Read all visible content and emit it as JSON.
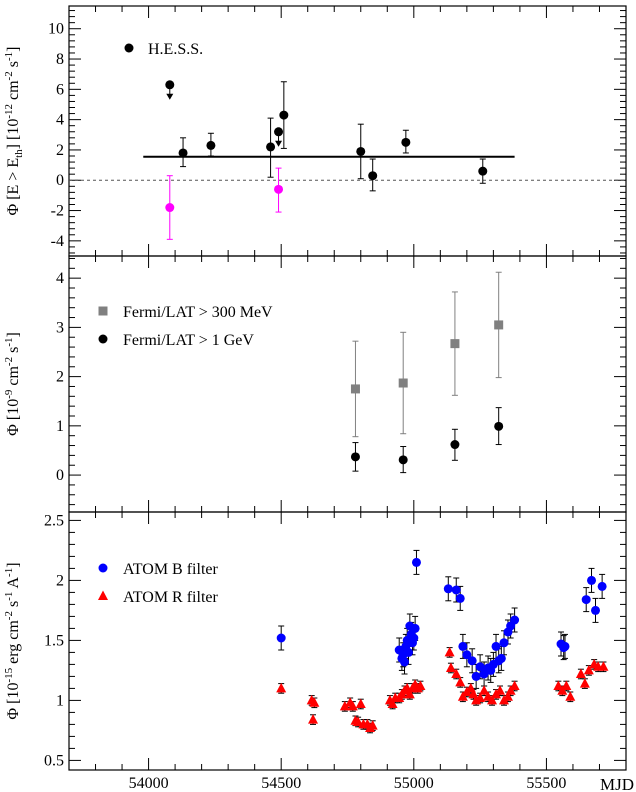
{
  "chart_data": [
    {
      "type": "scatter",
      "ylabel": "Φ [E > E_th] [10^-12 cm^-2 s^-1]",
      "ylim": [
        -5,
        11.5
      ],
      "yticks": [
        -4,
        -2,
        0,
        2,
        4,
        6,
        8,
        10
      ],
      "xlim": [
        53700,
        55800
      ],
      "legend": [
        {
          "label": "H.E.S.S.",
          "color": "#000000"
        }
      ],
      "series": [
        {
          "name": "H.E.S.S.",
          "color": "#000000",
          "points": [
            {
              "x": 54130,
              "y": 1.8,
              "ylo": 0.9,
              "yhi": 2.8
            },
            {
              "x": 54235,
              "y": 2.3,
              "ylo": 1.6,
              "yhi": 3.1
            },
            {
              "x": 54460,
              "y": 2.2,
              "ylo": 0.2,
              "yhi": 4.1
            },
            {
              "x": 54510,
              "y": 4.3,
              "ylo": 2.1,
              "yhi": 6.5
            },
            {
              "x": 54800,
              "y": 1.9,
              "ylo": 0.1,
              "yhi": 3.7
            },
            {
              "x": 54845,
              "y": 0.3,
              "ylo": -0.7,
              "yhi": 1.4
            },
            {
              "x": 54970,
              "y": 2.5,
              "ylo": 1.8,
              "yhi": 3.3
            },
            {
              "x": 55260,
              "y": 0.6,
              "ylo": -0.2,
              "yhi": 1.4
            }
          ],
          "upper_limits": [
            {
              "x": 54080,
              "y": 6.3
            },
            {
              "x": 54490,
              "y": 3.2
            }
          ]
        },
        {
          "name": "",
          "color": "#ff00ff",
          "points": [
            {
              "x": 54080,
              "y": -1.8,
              "ylo": -3.9,
              "yhi": 0.3
            },
            {
              "x": 54490,
              "y": -0.6,
              "ylo": -2.1,
              "yhi": 0.8
            }
          ]
        }
      ],
      "constant_fit": {
        "y": 1.55,
        "x_from": 53980,
        "x_to": 55380
      },
      "reference_line": {
        "y": 0,
        "style": "dashed"
      }
    },
    {
      "type": "scatter",
      "ylabel": "Φ [10^-9 cm^-2 s^-1]",
      "ylim": [
        -0.75,
        4.45
      ],
      "yticks": [
        0,
        1,
        2,
        3,
        4
      ],
      "xlim": [
        53700,
        55800
      ],
      "legend": [
        {
          "label": "Fermi/LAT > 300 MeV",
          "color": "#808080",
          "marker": "square"
        },
        {
          "label": "Fermi/LAT > 1 GeV",
          "color": "#000000",
          "marker": "circle"
        }
      ],
      "series": [
        {
          "name": "Fermi/LAT > 300 MeV",
          "color": "#808080",
          "marker": "square",
          "points": [
            {
              "x": 54780,
              "y": 1.75,
              "ylo": 0.78,
              "yhi": 2.72
            },
            {
              "x": 54960,
              "y": 1.87,
              "ylo": 0.84,
              "yhi": 2.9
            },
            {
              "x": 55155,
              "y": 2.67,
              "ylo": 1.62,
              "yhi": 3.72
            },
            {
              "x": 55320,
              "y": 3.05,
              "ylo": 1.98,
              "yhi": 4.12
            }
          ]
        },
        {
          "name": "Fermi/LAT > 1 GeV",
          "color": "#000000",
          "marker": "circle",
          "points": [
            {
              "x": 54780,
              "y": 0.37,
              "ylo": 0.08,
              "yhi": 0.66
            },
            {
              "x": 54960,
              "y": 0.31,
              "ylo": 0.05,
              "yhi": 0.58
            },
            {
              "x": 55155,
              "y": 0.62,
              "ylo": 0.3,
              "yhi": 0.93
            },
            {
              "x": 55320,
              "y": 0.99,
              "ylo": 0.62,
              "yhi": 1.37
            }
          ]
        }
      ]
    },
    {
      "type": "scatter",
      "ylabel": "Φ [10^-15 erg cm^-2 s^-1 A^-1]",
      "xlabel": "MJD",
      "ylim": [
        0.42,
        2.57
      ],
      "yticks": [
        0.5,
        1,
        1.5,
        2,
        2.5
      ],
      "xlim": [
        53700,
        55800
      ],
      "xticks": [
        54000,
        54500,
        55000,
        55500
      ],
      "legend": [
        {
          "label": "ATOM B filter",
          "color": "#0000ff",
          "marker": "circle"
        },
        {
          "label": "ATOM R filter",
          "color": "#ff0000",
          "marker": "triangle"
        }
      ],
      "series": [
        {
          "name": "ATOM B filter",
          "color": "#0000ff",
          "marker": "circle",
          "err": 0.1,
          "points": [
            [
              54500,
              1.52
            ],
            [
              54945,
              1.42
            ],
            [
              54955,
              1.35
            ],
            [
              54960,
              1.38
            ],
            [
              54965,
              1.32
            ],
            [
              54970,
              1.45
            ],
            [
              54975,
              1.5
            ],
            [
              54980,
              1.4
            ],
            [
              54985,
              1.62
            ],
            [
              54990,
              1.55
            ],
            [
              54995,
              1.48
            ],
            [
              55000,
              1.52
            ],
            [
              55005,
              1.6
            ],
            [
              55010,
              2.15
            ],
            [
              55130,
              1.93
            ],
            [
              55160,
              1.92
            ],
            [
              55175,
              1.85
            ],
            [
              55185,
              1.45
            ],
            [
              55200,
              1.38
            ],
            [
              55220,
              1.33
            ],
            [
              55235,
              1.2
            ],
            [
              55250,
              1.28
            ],
            [
              55265,
              1.22
            ],
            [
              55280,
              1.27
            ],
            [
              55290,
              1.25
            ],
            [
              55300,
              1.3
            ],
            [
              55310,
              1.45
            ],
            [
              55320,
              1.33
            ],
            [
              55330,
              1.35
            ],
            [
              55340,
              1.48
            ],
            [
              55355,
              1.57
            ],
            [
              55365,
              1.62
            ],
            [
              55380,
              1.67
            ],
            [
              55555,
              1.47
            ],
            [
              55565,
              1.44
            ],
            [
              55570,
              1.45
            ],
            [
              55650,
              1.84
            ],
            [
              55670,
              2.0
            ],
            [
              55685,
              1.75
            ],
            [
              55710,
              1.95
            ]
          ]
        },
        {
          "name": "ATOM R filter",
          "color": "#ff0000",
          "marker": "triangle",
          "err": 0.04,
          "points": [
            [
              54500,
              1.1
            ],
            [
              54615,
              1.0
            ],
            [
              54620,
              0.84
            ],
            [
              54625,
              0.98
            ],
            [
              54740,
              0.95
            ],
            [
              54760,
              0.98
            ],
            [
              54770,
              0.95
            ],
            [
              54780,
              0.83
            ],
            [
              54790,
              0.82
            ],
            [
              54800,
              0.97
            ],
            [
              54810,
              0.8
            ],
            [
              54825,
              0.8
            ],
            [
              54835,
              0.77
            ],
            [
              54845,
              0.79
            ],
            [
              54910,
              1.0
            ],
            [
              54920,
              0.97
            ],
            [
              54930,
              1.02
            ],
            [
              54945,
              1.02
            ],
            [
              54955,
              1.05
            ],
            [
              54965,
              1.08
            ],
            [
              54975,
              1.1
            ],
            [
              54985,
              1.05
            ],
            [
              54995,
              1.1
            ],
            [
              55005,
              1.13
            ],
            [
              55015,
              1.1
            ],
            [
              55025,
              1.12
            ],
            [
              55135,
              1.4
            ],
            [
              55140,
              1.27
            ],
            [
              55160,
              1.22
            ],
            [
              55175,
              1.15
            ],
            [
              55185,
              1.03
            ],
            [
              55200,
              1.07
            ],
            [
              55215,
              1.1
            ],
            [
              55225,
              1.05
            ],
            [
              55235,
              1.0
            ],
            [
              55250,
              1.02
            ],
            [
              55265,
              1.08
            ],
            [
              55280,
              1.03
            ],
            [
              55295,
              1.0
            ],
            [
              55310,
              1.05
            ],
            [
              55325,
              1.08
            ],
            [
              55340,
              1.0
            ],
            [
              55355,
              1.03
            ],
            [
              55365,
              1.08
            ],
            [
              55380,
              1.12
            ],
            [
              55545,
              1.12
            ],
            [
              55560,
              1.08
            ],
            [
              55575,
              1.12
            ],
            [
              55590,
              1.03
            ],
            [
              55630,
              1.22
            ],
            [
              55645,
              1.14
            ],
            [
              55660,
              1.25
            ],
            [
              55680,
              1.3
            ],
            [
              55695,
              1.28
            ],
            [
              55715,
              1.28
            ]
          ]
        }
      ]
    }
  ]
}
